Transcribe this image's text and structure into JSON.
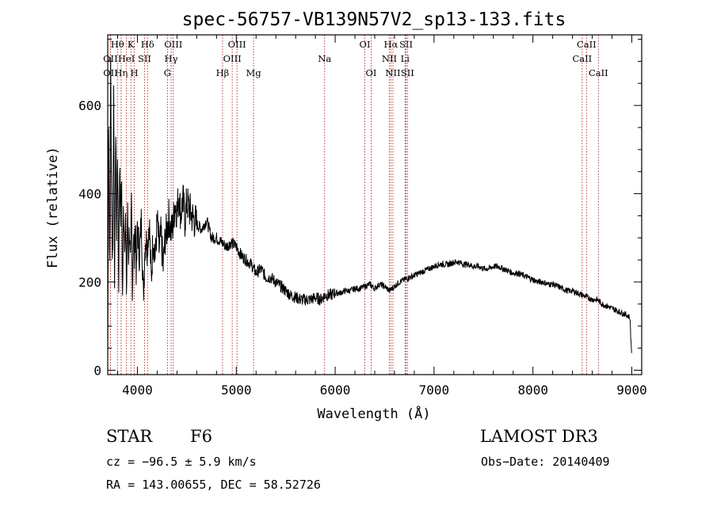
{
  "chart_data": {
    "type": "line",
    "title": "spec-56757-VB139N57V2_sp13-133.fits",
    "xlabel": "Wavelength (Å)",
    "ylabel": "Flux (relative)",
    "xlim": [
      3700,
      9100
    ],
    "ylim": [
      -10,
      760
    ],
    "xticks": [
      4000,
      5000,
      6000,
      7000,
      8000,
      9000
    ],
    "yticks": [
      0,
      200,
      400,
      600
    ],
    "series": [
      {
        "name": "spectrum",
        "x": [
          3700,
          3710,
          3720,
          3730,
          3740,
          3750,
          3760,
          3770,
          3780,
          3790,
          3800,
          3810,
          3820,
          3830,
          3840,
          3850,
          3860,
          3870,
          3880,
          3890,
          3900,
          3910,
          3920,
          3930,
          3940,
          3950,
          3960,
          3970,
          3980,
          3990,
          4000,
          4020,
          4040,
          4060,
          4080,
          4100,
          4120,
          4140,
          4160,
          4180,
          4200,
          4220,
          4240,
          4260,
          4280,
          4300,
          4320,
          4340,
          4360,
          4380,
          4400,
          4420,
          4440,
          4460,
          4480,
          4500,
          4550,
          4600,
          4650,
          4700,
          4750,
          4800,
          4850,
          4900,
          4950,
          5000,
          5050,
          5100,
          5150,
          5200,
          5250,
          5300,
          5350,
          5400,
          5450,
          5500,
          5550,
          5600,
          5650,
          5700,
          5750,
          5800,
          5850,
          5900,
          5950,
          6000,
          6050,
          6100,
          6150,
          6200,
          6250,
          6300,
          6350,
          6400,
          6450,
          6500,
          6550,
          6600,
          6650,
          6700,
          6750,
          6800,
          6850,
          6900,
          6950,
          7000,
          7050,
          7100,
          7150,
          7200,
          7250,
          7300,
          7350,
          7400,
          7450,
          7500,
          7550,
          7600,
          7650,
          7700,
          7750,
          7800,
          7850,
          7900,
          7950,
          8000,
          8050,
          8100,
          8150,
          8200,
          8250,
          8300,
          8350,
          8400,
          8450,
          8500,
          8550,
          8600,
          8650,
          8700,
          8750,
          8800,
          8850,
          8900,
          8950,
          8980,
          9000
        ],
        "values": [
          20,
          600,
          200,
          700,
          320,
          260,
          640,
          180,
          560,
          300,
          520,
          170,
          470,
          350,
          420,
          160,
          380,
          300,
          340,
          170,
          360,
          260,
          330,
          210,
          380,
          180,
          320,
          250,
          350,
          200,
          330,
          260,
          340,
          170,
          300,
          280,
          340,
          200,
          310,
          250,
          340,
          270,
          310,
          230,
          300,
          320,
          350,
          310,
          330,
          380,
          360,
          400,
          350,
          390,
          340,
          380,
          350,
          330,
          320,
          340,
          300,
          300,
          290,
          280,
          290,
          280,
          260,
          250,
          240,
          220,
          230,
          210,
          210,
          200,
          190,
          180,
          170,
          165,
          160,
          160,
          160,
          165,
          160,
          170,
          170,
          175,
          175,
          180,
          180,
          185,
          185,
          190,
          195,
          185,
          195,
          190,
          180,
          190,
          200,
          205,
          210,
          215,
          220,
          225,
          230,
          235,
          240,
          240,
          240,
          245,
          245,
          240,
          240,
          235,
          235,
          230,
          230,
          235,
          235,
          230,
          225,
          220,
          220,
          215,
          210,
          205,
          200,
          200,
          195,
          195,
          190,
          185,
          180,
          180,
          175,
          170,
          165,
          160,
          160,
          150,
          145,
          140,
          135,
          130,
          125,
          120,
          30
        ]
      }
    ],
    "lines": [
      {
        "label": "OII",
        "x": 3727,
        "row": 2
      },
      {
        "label": "OII",
        "x": 3728,
        "row": 3
      },
      {
        "label": "Hθ",
        "x": 3798,
        "row": 1
      },
      {
        "label": "Hη",
        "x": 3835,
        "row": 3
      },
      {
        "label": "HeI",
        "x": 3889,
        "row": 2
      },
      {
        "label": "K",
        "x": 3934,
        "row": 1
      },
      {
        "label": "H",
        "x": 3969,
        "row": 3
      },
      {
        "label": "SII",
        "x": 4072,
        "row": 2
      },
      {
        "label": "Hδ",
        "x": 4102,
        "row": 1
      },
      {
        "label": "OIII",
        "x": 4363,
        "row": 1
      },
      {
        "label": "Hγ",
        "x": 4341,
        "row": 2
      },
      {
        "label": "G",
        "x": 4304,
        "row": 3
      },
      {
        "label": "Hβ",
        "x": 4861,
        "row": 3
      },
      {
        "label": "OIII",
        "x": 5007,
        "row": 1
      },
      {
        "label": "OIII",
        "x": 4959,
        "row": 2
      },
      {
        "label": "Mg",
        "x": 5175,
        "row": 3
      },
      {
        "label": "Na",
        "x": 5893,
        "row": 2
      },
      {
        "label": "OI",
        "x": 6300,
        "row": 1
      },
      {
        "label": "OI",
        "x": 6364,
        "row": 3
      },
      {
        "label": "Hα",
        "x": 6563,
        "row": 1
      },
      {
        "label": "NII",
        "x": 6548,
        "row": 2
      },
      {
        "label": "NII",
        "x": 6584,
        "row": 3
      },
      {
        "label": "SII",
        "x": 6717,
        "row": 1
      },
      {
        "label": "Li",
        "x": 6707,
        "row": 2
      },
      {
        "label": "SII",
        "x": 6731,
        "row": 3
      },
      {
        "label": "CaII",
        "x": 8542,
        "row": 1
      },
      {
        "label": "CaII",
        "x": 8498,
        "row": 2
      },
      {
        "label": "CaII",
        "x": 8662,
        "row": 3
      }
    ]
  },
  "info": {
    "object_type": "STAR",
    "subclass": "F6",
    "survey": "LAMOST DR3",
    "cz": "cz = −96.5 ± 5.9 km/s",
    "obs_date": "Obs−Date: 20140409",
    "coords": "RA = 143.00655, DEC =  58.52726"
  },
  "colors": {
    "line_marker": "#b22222",
    "spectrum": "#000000"
  }
}
